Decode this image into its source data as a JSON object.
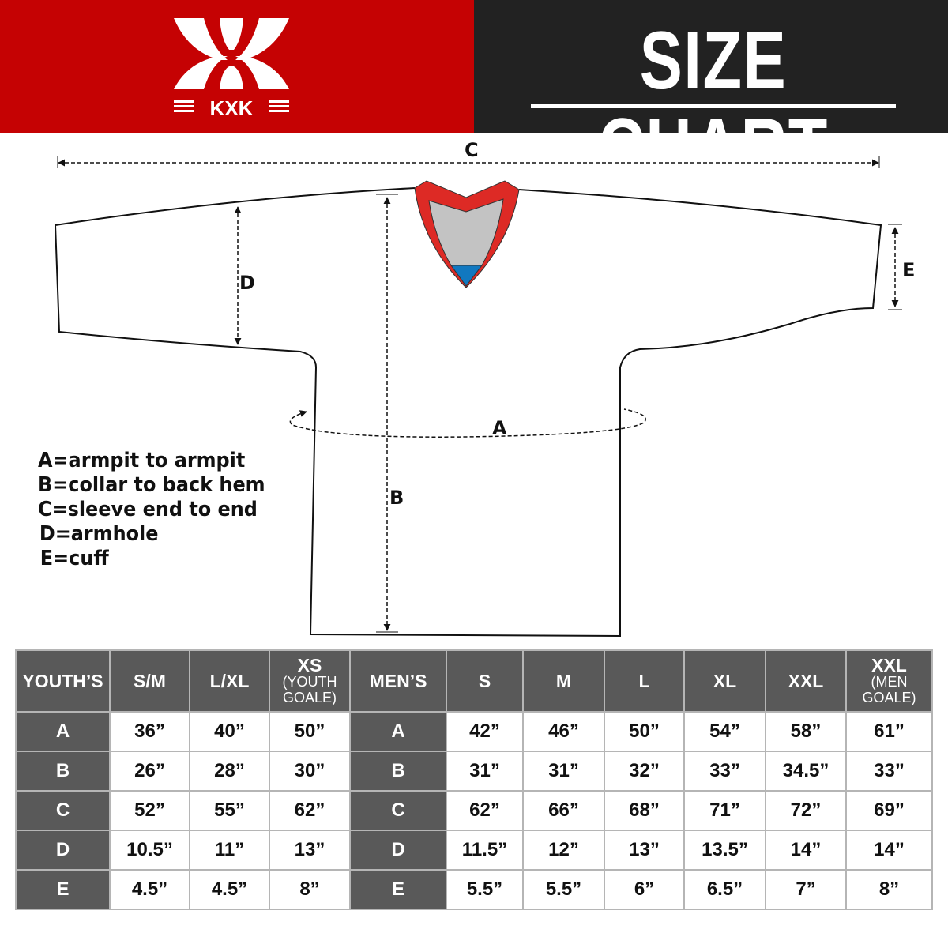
{
  "header": {
    "brand": "KXK",
    "title": "SIZE CHART",
    "colors": {
      "red": "#c50203",
      "dark": "#222222"
    }
  },
  "diagram": {
    "labels": {
      "A": "A",
      "B": "B",
      "C": "C",
      "D": "D",
      "E": "E"
    },
    "legend": [
      "A=armpit to armpit",
      "B=collar to back hem",
      "C=sleeve end to end",
      "D=armhole",
      "E=cuff"
    ]
  },
  "table": {
    "youth_header": "YOUTH’S",
    "youth_sizes": [
      {
        "main": "S/M"
      },
      {
        "main": "L/XL"
      },
      {
        "main": "XS",
        "sub": "(YOUTH GOALE)"
      }
    ],
    "men_header": "MEN’S",
    "men_sizes": [
      {
        "main": "S"
      },
      {
        "main": "M"
      },
      {
        "main": "L"
      },
      {
        "main": "XL"
      },
      {
        "main": "XXL"
      },
      {
        "main": "XXL",
        "sub": "(MEN GOALE)"
      }
    ],
    "rows": [
      {
        "label": "A",
        "youth": [
          "36”",
          "40”",
          "50”"
        ],
        "men": [
          "42”",
          "46”",
          "50”",
          "54”",
          "58”",
          "61”"
        ]
      },
      {
        "label": "B",
        "youth": [
          "26”",
          "28”",
          "30”"
        ],
        "men": [
          "31”",
          "31”",
          "32”",
          "33”",
          "34.5”",
          "33”"
        ]
      },
      {
        "label": "C",
        "youth": [
          "52”",
          "55”",
          "62”"
        ],
        "men": [
          "62”",
          "66”",
          "68”",
          "71”",
          "72”",
          "69”"
        ]
      },
      {
        "label": "D",
        "youth": [
          "10.5”",
          "11”",
          "13”"
        ],
        "men": [
          "11.5”",
          "12”",
          "13”",
          "13.5”",
          "14”",
          "14”"
        ]
      },
      {
        "label": "E",
        "youth": [
          "4.5”",
          "4.5”",
          "8”"
        ],
        "men": [
          "5.5”",
          "5.5”",
          "6”",
          "6.5”",
          "7”",
          "8”"
        ]
      }
    ]
  }
}
